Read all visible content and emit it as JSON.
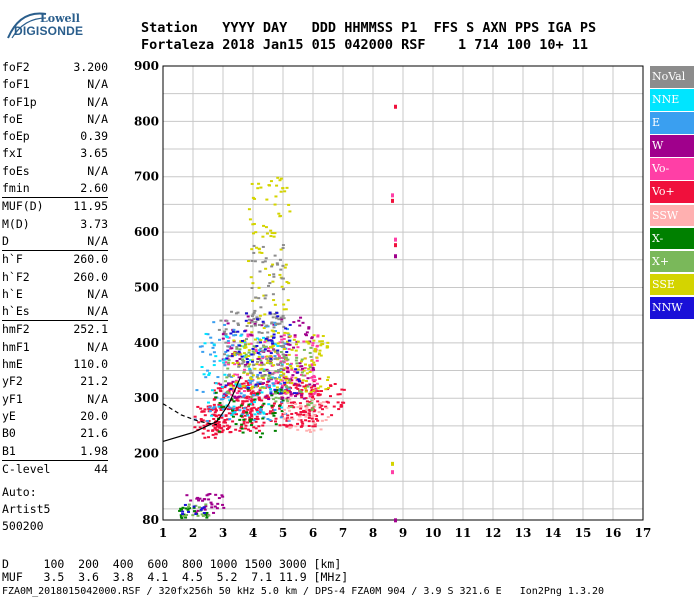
{
  "logo": {
    "line1": "Lowell",
    "line2": "DIGISONDE"
  },
  "header": {
    "line1": "Station   YYYY DAY   DDD HHMMSS P1  FFS S AXN PPS IGA PS",
    "line2": "Fortaleza 2018 Jan15 015 042000 RSF    1 714 100 10+ 11"
  },
  "params": [
    [
      {
        "label": "foF2",
        "value": "3.200"
      },
      {
        "label": "foF1",
        "value": "N/A"
      },
      {
        "label": "foF1p",
        "value": "N/A"
      },
      {
        "label": "foE",
        "value": "N/A"
      },
      {
        "label": "foEp",
        "value": "0.39"
      },
      {
        "label": "fxI",
        "value": "3.65"
      },
      {
        "label": "foEs",
        "value": "N/A"
      },
      {
        "label": "fmin",
        "value": "2.60"
      }
    ],
    [
      {
        "label": "MUF(D)",
        "value": "11.95"
      },
      {
        "label": "M(D)",
        "value": "3.73"
      },
      {
        "label": "D",
        "value": "N/A"
      }
    ],
    [
      {
        "label": "h`F",
        "value": "260.0"
      },
      {
        "label": "h`F2",
        "value": "260.0"
      },
      {
        "label": "h`E",
        "value": "N/A"
      },
      {
        "label": "h`Es",
        "value": "N/A"
      }
    ],
    [
      {
        "label": "hmF2",
        "value": "252.1"
      },
      {
        "label": "hmF1",
        "value": "N/A"
      },
      {
        "label": "hmE",
        "value": "110.0"
      },
      {
        "label": "yF2",
        "value": "21.2"
      },
      {
        "label": "yF1",
        "value": "N/A"
      },
      {
        "label": "yE",
        "value": "20.0"
      },
      {
        "label": "B0",
        "value": "21.6"
      },
      {
        "label": "B1",
        "value": "1.98"
      }
    ],
    [
      {
        "label": "C-level",
        "value": "44"
      }
    ]
  ],
  "auto": {
    "line1": "Auto:",
    "line2": "Artist5",
    "line3": "500200"
  },
  "chart_data": {
    "type": "scatter",
    "x_ticks": [
      "1",
      "2",
      "3",
      "4",
      "5",
      "6",
      "7",
      "8",
      "9",
      "10",
      "11",
      "12",
      "13",
      "14",
      "15",
      "16",
      "17"
    ],
    "y_ticks": [
      "80",
      "200",
      "300",
      "400",
      "500",
      "600",
      "700",
      "800",
      "900"
    ],
    "xlim": [
      1,
      17
    ],
    "ylim": [
      80,
      900
    ],
    "grid": true,
    "legend_position": "right",
    "legend": [
      {
        "name": "NoVal",
        "color": "#8c8c8c"
      },
      {
        "name": "NNE",
        "color": "#00e5ff"
      },
      {
        "name": "E",
        "color": "#3a9ff0"
      },
      {
        "name": "W",
        "color": "#a0008c"
      },
      {
        "name": "Vo-",
        "color": "#ff3fa6"
      },
      {
        "name": "Vo+",
        "color": "#f0103c"
      },
      {
        "name": "SSW",
        "color": "#ffb0b0"
      },
      {
        "name": "X-",
        "color": "#008000"
      },
      {
        "name": "X+",
        "color": "#7ab85a"
      },
      {
        "name": "SSE",
        "color": "#d4d400"
      },
      {
        "name": "NNW",
        "color": "#1a10d8"
      }
    ],
    "clusters": [
      {
        "x": [
          2.0,
          3.0
        ],
        "y": [
          230,
          290
        ],
        "color": "#f0103c",
        "n": 70
      },
      {
        "x": [
          2.6,
          4.2
        ],
        "y": [
          240,
          330
        ],
        "color": "#f0103c",
        "n": 160
      },
      {
        "x": [
          3.6,
          6.2
        ],
        "y": [
          250,
          340
        ],
        "color": "#f0103c",
        "n": 170
      },
      {
        "x": [
          5.5,
          7.0
        ],
        "y": [
          270,
          330
        ],
        "color": "#f0103c",
        "n": 50
      },
      {
        "x": [
          3.0,
          6.2
        ],
        "y": [
          300,
          420
        ],
        "color": "#ff3fa6",
        "n": 130
      },
      {
        "x": [
          2.8,
          6.0
        ],
        "y": [
          300,
          450
        ],
        "color": "#a0008c",
        "n": 120
      },
      {
        "x": [
          2.0,
          5.2
        ],
        "y": [
          260,
          440
        ],
        "color": "#3a9ff0",
        "n": 120
      },
      {
        "x": [
          2.2,
          5.0
        ],
        "y": [
          270,
          420
        ],
        "color": "#00e5ff",
        "n": 70
      },
      {
        "x": [
          3.2,
          6.5
        ],
        "y": [
          310,
          420
        ],
        "color": "#d4d400",
        "n": 150
      },
      {
        "x": [
          3.8,
          5.2
        ],
        "y": [
          420,
          700
        ],
        "color": "#d4d400",
        "n": 80
      },
      {
        "x": [
          3.8,
          5.0
        ],
        "y": [
          430,
          580
        ],
        "color": "#8c8c8c",
        "n": 50
      },
      {
        "x": [
          2.8,
          5.0
        ],
        "y": [
          330,
          460
        ],
        "color": "#8c8c8c",
        "n": 90
      },
      {
        "x": [
          2.6,
          5.0
        ],
        "y": [
          230,
          320
        ],
        "color": "#008000",
        "n": 50
      },
      {
        "x": [
          3.0,
          6.0
        ],
        "y": [
          280,
          400
        ],
        "color": "#7ab85a",
        "n": 70
      },
      {
        "x": [
          3.0,
          5.5
        ],
        "y": [
          310,
          460
        ],
        "color": "#1a10d8",
        "n": 60
      },
      {
        "x": [
          4.8,
          6.5
        ],
        "y": [
          240,
          300
        ],
        "color": "#ffb0b0",
        "n": 40
      },
      {
        "x": [
          1.7,
          3.0
        ],
        "y": [
          90,
          130
        ],
        "color": "#a0008c",
        "n": 35
      },
      {
        "x": [
          1.5,
          2.5
        ],
        "y": [
          85,
          105
        ],
        "color": "#008000",
        "n": 20
      },
      {
        "x": [
          1.5,
          2.5
        ],
        "y": [
          85,
          110
        ],
        "color": "#7ab85a",
        "n": 15
      },
      {
        "x": [
          1.5,
          2.4
        ],
        "y": [
          90,
          110
        ],
        "color": "#1a10d8",
        "n": 10
      }
    ],
    "isolated_points": [
      {
        "x": 8.7,
        "y": 830,
        "color": "#f0103c"
      },
      {
        "x": 8.6,
        "y": 670,
        "color": "#ff3fa6"
      },
      {
        "x": 8.6,
        "y": 660,
        "color": "#f0103c"
      },
      {
        "x": 8.7,
        "y": 590,
        "color": "#ff3fa6"
      },
      {
        "x": 8.7,
        "y": 580,
        "color": "#f0103c"
      },
      {
        "x": 8.7,
        "y": 560,
        "color": "#a0008c"
      },
      {
        "x": 8.6,
        "y": 185,
        "color": "#d4d400"
      },
      {
        "x": 8.6,
        "y": 170,
        "color": "#ff3fa6"
      },
      {
        "x": 8.7,
        "y": 83,
        "color": "#a0008c"
      }
    ],
    "profile_curves": [
      {
        "points": [
          [
            1.0,
            290
          ],
          [
            1.6,
            270
          ],
          [
            2.2,
            258
          ],
          [
            2.8,
            252
          ]
        ],
        "style": "dashed"
      },
      {
        "points": [
          [
            1.0,
            222
          ],
          [
            2.0,
            238
          ],
          [
            2.8,
            258
          ],
          [
            3.2,
            290
          ],
          [
            3.6,
            340
          ]
        ],
        "style": "solid"
      }
    ]
  },
  "bottom": {
    "line1": "D     100  200  400  600  800 1000 1500 3000 [km]",
    "line2": "MUF   3.5  3.6  3.8  4.1  4.5  5.2  7.1 11.9 [MHz]"
  },
  "footer": "FZA0M_2018015042000.RSF / 320fx256h 50 kHz 5.0 km / DPS-4 FZA0M 904 / 3.9 S 321.6 E   Ion2Png 1.3.20"
}
